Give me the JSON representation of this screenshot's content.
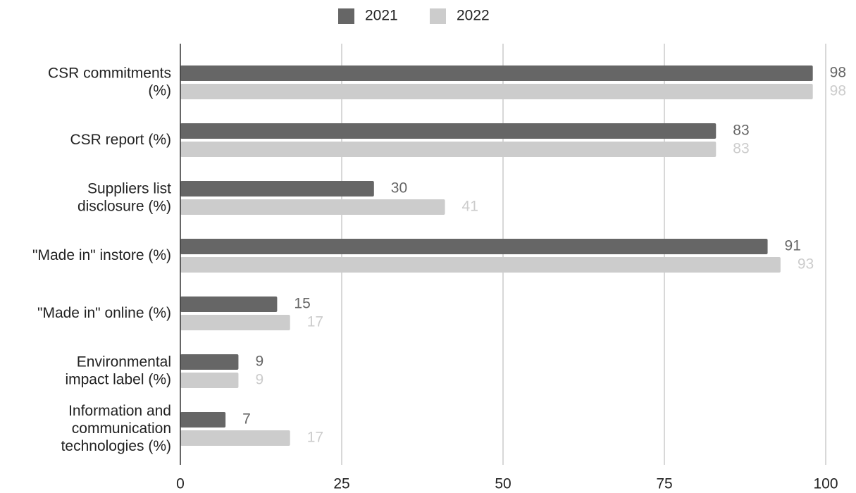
{
  "chart_data": {
    "type": "bar",
    "orientation": "horizontal",
    "categories": [
      "CSR commitments\n(%)",
      "CSR report (%)",
      "Suppliers list\ndisclosure (%)",
      "\"Made in\" instore (%)",
      "\"Made in\" online (%)",
      "Environmental\nimpact label (%)",
      "Information and\ncommunication\ntechnologies (%)"
    ],
    "series": [
      {
        "name": "2021",
        "color": "#666666",
        "values": [
          98,
          83,
          30,
          91,
          15,
          9,
          7
        ]
      },
      {
        "name": "2022",
        "color": "#cccccc",
        "values": [
          98,
          83,
          41,
          93,
          17,
          9,
          17
        ]
      }
    ],
    "xlim": [
      0,
      100
    ],
    "xticks": [
      0,
      25,
      50,
      75,
      100
    ],
    "grid": true,
    "legend": "top"
  }
}
